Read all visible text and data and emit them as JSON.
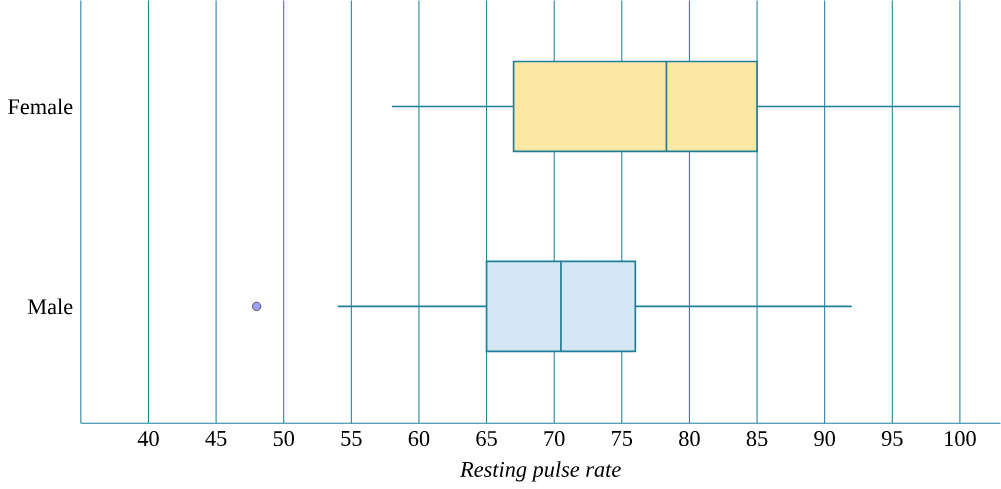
{
  "chart_data": {
    "type": "box",
    "orientation": "horizontal",
    "xlabel": "Resting pulse rate",
    "categories": [
      "Female",
      "Male"
    ],
    "color": "#1f7f9a",
    "colors": [
      "#fde7a6",
      "#d5e7f5"
    ],
    "grid": "x",
    "boxes": [
      {
        "low": 58,
        "q1": 67,
        "median": 78.3,
        "q3": 85,
        "high": 100
      },
      {
        "low": 54,
        "q1": 65,
        "median": 70.5,
        "q3": 76,
        "high": 92,
        "outliers": [
          48
        ]
      }
    ],
    "xlim": [
      35,
      103
    ],
    "xticks": [
      40,
      45,
      50,
      55,
      60,
      65,
      70,
      75,
      80,
      85,
      90,
      95,
      100
    ]
  }
}
